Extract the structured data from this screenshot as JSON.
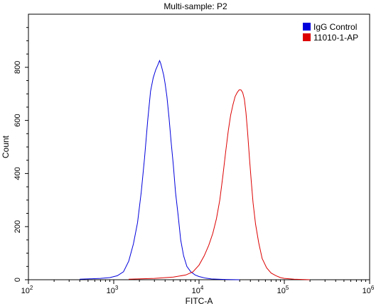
{
  "chart_data": {
    "type": "line",
    "title": "Multi-sample: P2",
    "xlabel": "FITC-A",
    "ylabel": "Count",
    "x_scale": "log",
    "xlim": [
      100,
      1000000
    ],
    "ylim": [
      0,
      1000
    ],
    "x_ticks": [
      {
        "value": 100,
        "base": "10",
        "exp": "2"
      },
      {
        "value": 1000,
        "base": "10",
        "exp": "3"
      },
      {
        "value": 10000,
        "base": "10",
        "exp": "4"
      },
      {
        "value": 100000,
        "base": "10",
        "exp": "5"
      },
      {
        "value": 1000000,
        "base": "10",
        "exp": "6"
      }
    ],
    "y_ticks": [
      0,
      200,
      400,
      600,
      800
    ],
    "grid": false,
    "legend_position": "top-right",
    "series": [
      {
        "name": "IgG Control",
        "color": "#0000dd",
        "x": [
          400,
          700,
          900,
          1100,
          1300,
          1500,
          1700,
          1900,
          2100,
          2300,
          2500,
          2700,
          2900,
          3100,
          3300,
          3450,
          3550,
          3650,
          3750,
          3850,
          4000,
          4200,
          4450,
          4700,
          5000,
          5300,
          5700,
          6100,
          6600,
          7200,
          8000,
          9000,
          10000,
          12000,
          14000,
          20000,
          30000
        ],
        "y": [
          2,
          5,
          8,
          15,
          30,
          70,
          135,
          215,
          330,
          460,
          600,
          710,
          760,
          790,
          810,
          825,
          815,
          800,
          785,
          770,
          740,
          690,
          610,
          520,
          430,
          330,
          240,
          150,
          90,
          50,
          30,
          18,
          12,
          6,
          3,
          1,
          0
        ]
      },
      {
        "name": "11010-1-AP",
        "color": "#dd0000",
        "x": [
          1500,
          3000,
          5000,
          7000,
          8500,
          10000,
          11500,
          13000,
          14500,
          16000,
          17500,
          19000,
          20500,
          22000,
          23500,
          25000,
          26500,
          28000,
          29500,
          31000,
          32500,
          34000,
          35500,
          37000,
          39000,
          41000,
          43000,
          46000,
          50000,
          55000,
          62000,
          70000,
          80000,
          90000,
          100000,
          130000,
          200000
        ],
        "y": [
          2,
          5,
          10,
          18,
          30,
          55,
          90,
          130,
          175,
          230,
          300,
          390,
          480,
          560,
          620,
          660,
          690,
          705,
          715,
          715,
          705,
          680,
          630,
          560,
          460,
          370,
          290,
          210,
          140,
          80,
          45,
          25,
          15,
          8,
          5,
          2,
          0
        ]
      }
    ]
  }
}
